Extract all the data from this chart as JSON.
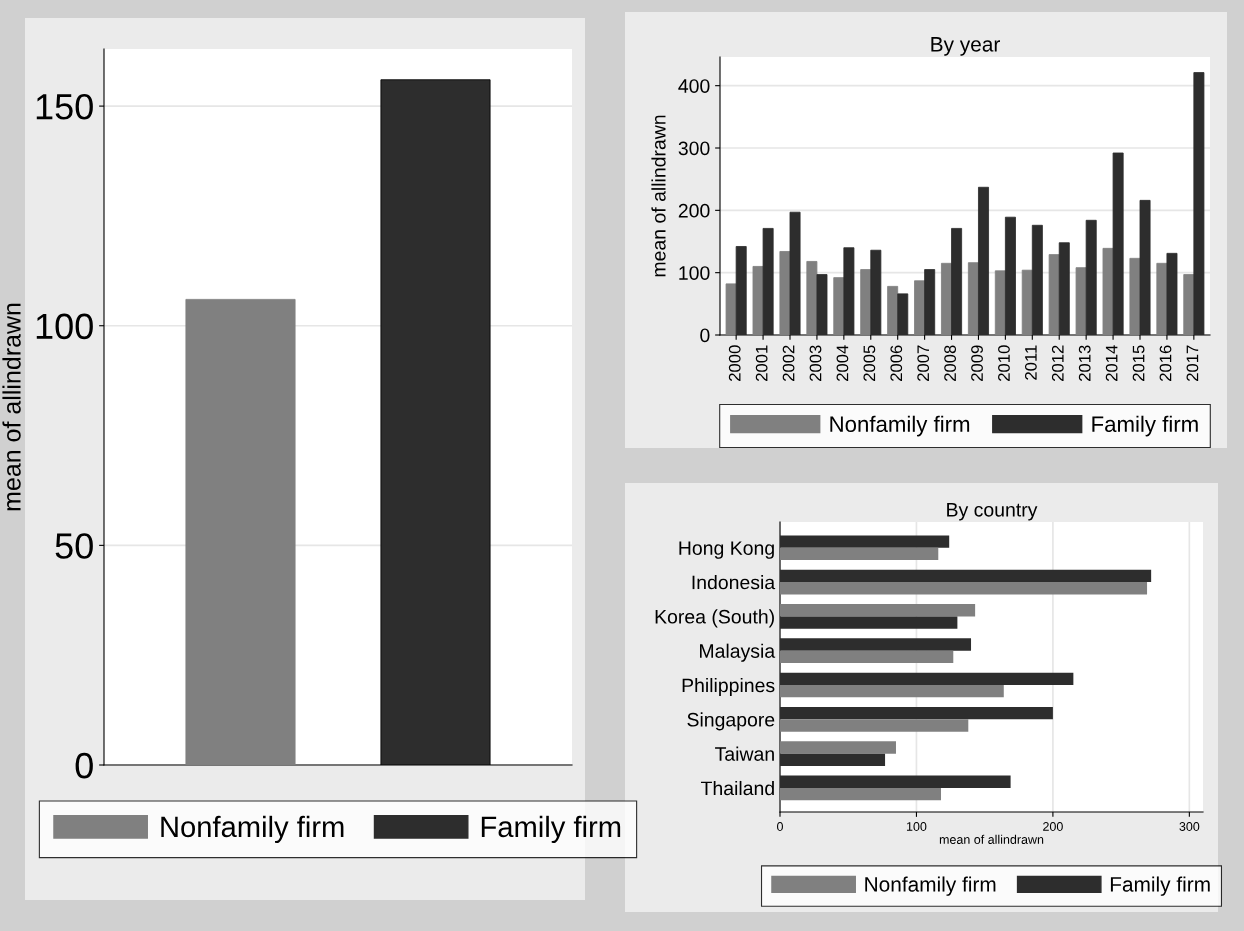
{
  "chart_data": [
    {
      "type": "bar",
      "ylabel": "mean of allindrawn",
      "categories": [
        null
      ],
      "ylim": [
        0,
        163
      ],
      "yticks": [
        0,
        50,
        100,
        150
      ],
      "grid": "y",
      "legend": "bottom",
      "tick_labels": "y",
      "series": [
        {
          "name": "Nonfamily firm",
          "color": "#808080",
          "values": [
            106
          ]
        },
        {
          "name": "Family firm",
          "color": "#2d2d2d",
          "values": [
            156
          ]
        }
      ]
    },
    {
      "type": "bar",
      "title": "By year",
      "ylabel": "mean of allindrawn",
      "categories": [
        "2000",
        "2001",
        "2002",
        "2003",
        "2004",
        "2005",
        "2006",
        "2007",
        "2008",
        "2009",
        "2010",
        "2011",
        "2012",
        "2013",
        "2014",
        "2015",
        "2016",
        "2017"
      ],
      "ylim": [
        0,
        446
      ],
      "yticks": [
        0,
        100,
        200,
        300,
        400
      ],
      "grid": "y",
      "legend": "bottom",
      "series": [
        {
          "name": "Nonfamily firm",
          "color": "#808080",
          "values": [
            82,
            110,
            134,
            118,
            92,
            105,
            78,
            87,
            115,
            116,
            103,
            104,
            129,
            108,
            139,
            123,
            115,
            97
          ]
        },
        {
          "name": "Family firm",
          "color": "#2d2d2d",
          "values": [
            142,
            171,
            197,
            97,
            140,
            136,
            66,
            105,
            171,
            237,
            189,
            176,
            148,
            184,
            292,
            216,
            131,
            421
          ]
        }
      ]
    },
    {
      "type": "bar",
      "orientation": "horizontal",
      "title": "By country",
      "xlabel": "mean of allindrawn",
      "categories": [
        "Hong Kong",
        "Indonesia",
        "Korea (South)",
        "Malaysia",
        "Philippines",
        "Singapore",
        "Taiwan",
        "Thailand"
      ],
      "xlim": [
        0,
        310
      ],
      "xticks": [
        0,
        100,
        200,
        300
      ],
      "grid": "x",
      "legend": "bottom",
      "series": [
        {
          "name": "Nonfamily firm",
          "color": "#808080",
          "values": [
            116,
            269,
            143,
            127,
            164,
            138,
            85,
            118
          ]
        },
        {
          "name": "Family firm",
          "color": "#2d2d2d",
          "values": [
            124,
            272,
            130,
            140,
            215,
            200,
            77,
            169
          ]
        }
      ]
    }
  ]
}
